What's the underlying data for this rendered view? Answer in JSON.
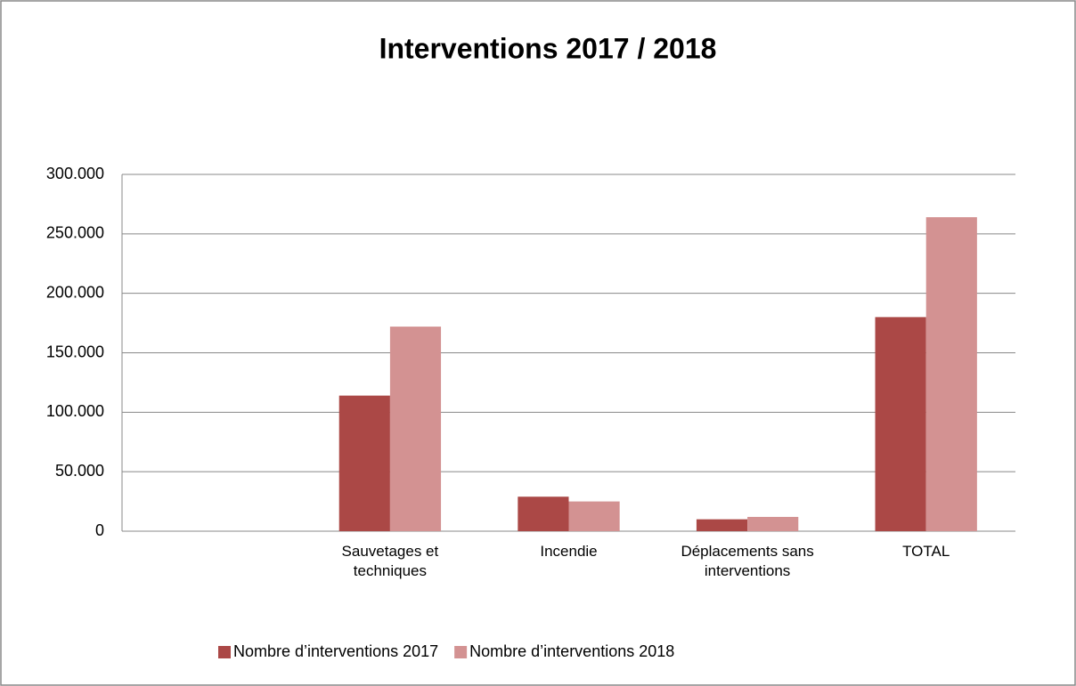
{
  "chart_data": {
    "type": "bar",
    "title": "Interventions 2017 / 2018",
    "categories": [
      null,
      "Sauvetages et techniques",
      "Incendie",
      "Déplacements sans interventions",
      "TOTAL"
    ],
    "series": [
      {
        "name": "Nombre d’interventions 2017",
        "color": "#ab4846",
        "values": [
          null,
          114000,
          29000,
          10000,
          180000
        ]
      },
      {
        "name": "Nombre d’interventions 2018",
        "color": "#d39292",
        "values": [
          null,
          172000,
          25000,
          12000,
          264000
        ]
      }
    ],
    "ylim": [
      0,
      300000
    ],
    "yticks": [
      0,
      {
        "value": 50000,
        "label": "50.000"
      },
      {
        "value": 100000,
        "label": "100.000"
      },
      {
        "value": 150000,
        "label": "150.000"
      },
      {
        "value": 200000,
        "label": "200.000"
      },
      {
        "value": 250000,
        "label": "250.000"
      },
      {
        "value": 300000,
        "label": "300.000"
      }
    ],
    "grid": true,
    "legend": "bottom"
  }
}
